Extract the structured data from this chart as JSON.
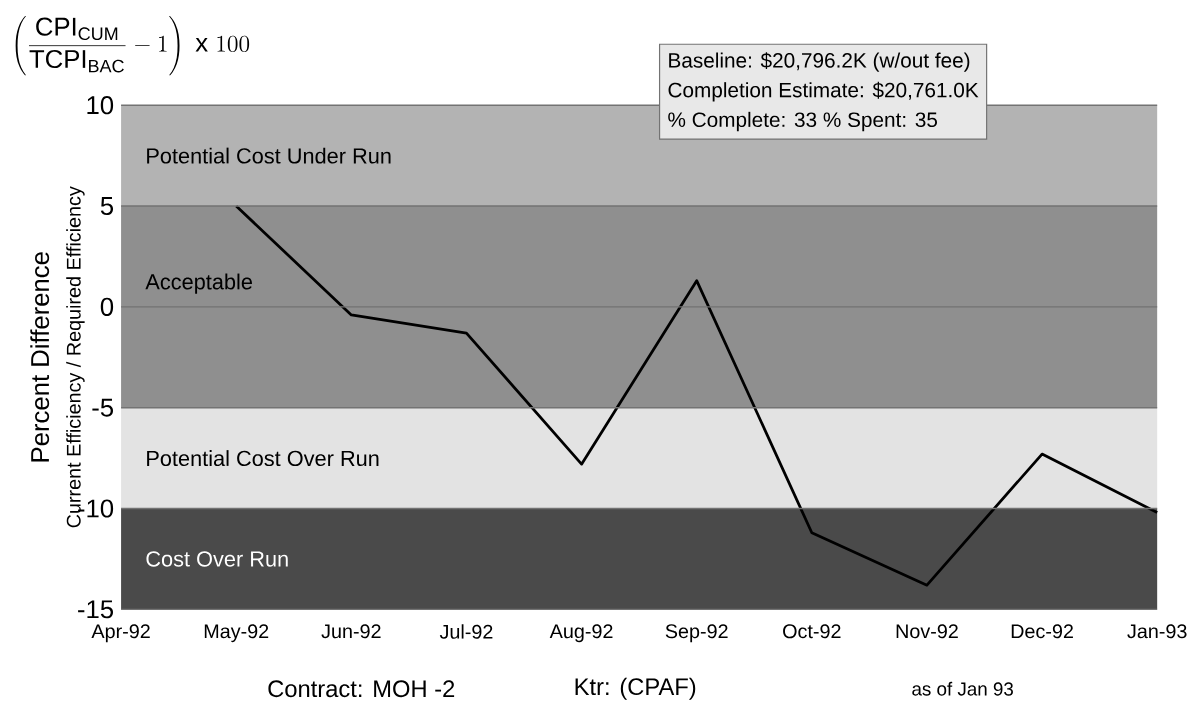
{
  "chart_data": {
    "type": "line",
    "title": "\\left(\\frac{\\mathrm{CPI}_{\\mathrm{CUM}}}{\\mathrm{TCPI}_{\\mathrm{BAC}}}-1\\right)\\ \\mathrm{x}\\ 100",
    "ylabel": "Percent Difference",
    "categories": [
      "Apr-92",
      "May-92",
      "Jun-92",
      "Jul-92",
      "Aug-92",
      "Sep-92",
      "Oct-92",
      "Nov-92",
      "Dec-92",
      "Jan-93"
    ],
    "series": [
      {
        "color": "#000000",
        "values": [
          null,
          5.0,
          -0.4,
          -1.3,
          -7.8,
          1.3,
          -11.2,
          -13.8,
          -7.3,
          -10.2
        ]
      }
    ],
    "ylim": [
      -15,
      10
    ],
    "yticks": [
      -15,
      -10,
      -5,
      0,
      5,
      10
    ],
    "grid": "y",
    "marker": "none",
    "line_style": "solid",
    "bands": [
      {
        "axis": "y",
        "from": 5,
        "to": 10,
        "label": "Potential Cost Under Run",
        "color": "#b3b3b3"
      },
      {
        "axis": "y",
        "from": -5,
        "to": 5,
        "label": "Acceptable",
        "color": "#8f8f8f"
      },
      {
        "axis": "y",
        "from": -10,
        "to": -5,
        "label": "Potential Cost Over Run",
        "color": "#e3e3e3"
      },
      {
        "axis": "y",
        "from": -15,
        "to": -10,
        "label": "Cost Over Run",
        "color": "#4a4a4a"
      }
    ],
    "annotations": [
      "Current Efficiency / Required Efficiency",
      "Baseline:  $20,796.2K  (w/out fee)",
      "Completion Estimate:  $20,761.0K",
      "% Complete:  33  % Spent:  35",
      "Contract:  MOH -2",
      "Ktr: (CPAF)",
      "as of Jan 93"
    ]
  }
}
